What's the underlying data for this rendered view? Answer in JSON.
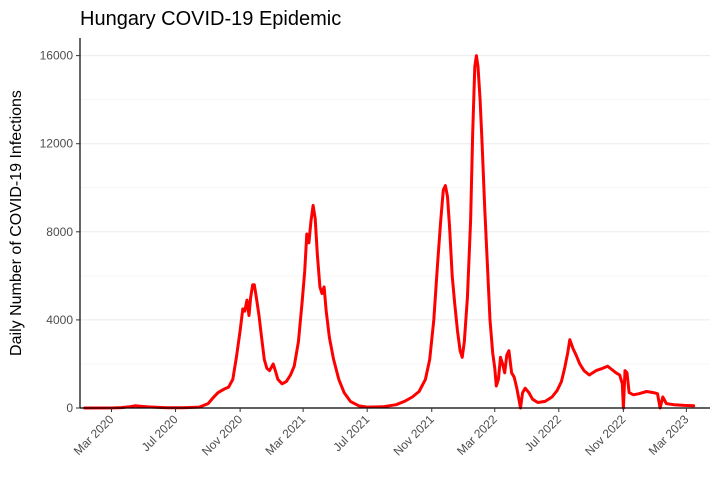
{
  "chart_data": {
    "type": "line",
    "title": "Hungary COVID-19 Epidemic",
    "xlabel": "",
    "ylabel": "Daily Number of COVID-19 Infections",
    "x_type": "date",
    "xlim": [
      "2020-01-01",
      "2023-04-15"
    ],
    "ylim": [
      0,
      16800
    ],
    "x_ticks": [
      {
        "date": "2020-03-01",
        "label": "Mar 2020"
      },
      {
        "date": "2020-07-01",
        "label": "Jul 2020"
      },
      {
        "date": "2020-11-01",
        "label": "Nov 2020"
      },
      {
        "date": "2021-03-01",
        "label": "Mar 2021"
      },
      {
        "date": "2021-07-01",
        "label": "Jul 2021"
      },
      {
        "date": "2021-11-01",
        "label": "Nov 2021"
      },
      {
        "date": "2022-03-01",
        "label": "Mar 2022"
      },
      {
        "date": "2022-07-01",
        "label": "Jul 2022"
      },
      {
        "date": "2022-11-01",
        "label": "Nov 2022"
      },
      {
        "date": "2023-03-01",
        "label": "Mar 2023"
      }
    ],
    "y_ticks": [
      0,
      4000,
      8000,
      12000,
      16000
    ],
    "y_tick_labels": [
      "0",
      "4000",
      "8000",
      "12000",
      "16000"
    ],
    "grid": true,
    "legend": "none",
    "series": [
      {
        "color": "#ff0000",
        "points": [
          [
            "2020-01-10",
            0
          ],
          [
            "2020-03-04",
            5
          ],
          [
            "2020-03-20",
            20
          ],
          [
            "2020-04-05",
            60
          ],
          [
            "2020-04-15",
            100
          ],
          [
            "2020-04-25",
            80
          ],
          [
            "2020-05-10",
            50
          ],
          [
            "2020-05-25",
            30
          ],
          [
            "2020-06-15",
            15
          ],
          [
            "2020-07-15",
            10
          ],
          [
            "2020-08-15",
            40
          ],
          [
            "2020-09-01",
            200
          ],
          [
            "2020-09-10",
            450
          ],
          [
            "2020-09-20",
            700
          ],
          [
            "2020-10-01",
            850
          ],
          [
            "2020-10-10",
            950
          ],
          [
            "2020-10-18",
            1300
          ],
          [
            "2020-10-25",
            2300
          ],
          [
            "2020-11-01",
            3500
          ],
          [
            "2020-11-06",
            4500
          ],
          [
            "2020-11-10",
            4400
          ],
          [
            "2020-11-14",
            4900
          ],
          [
            "2020-11-18",
            4200
          ],
          [
            "2020-11-21",
            5000
          ],
          [
            "2020-11-25",
            5600
          ],
          [
            "2020-11-28",
            5600
          ],
          [
            "2020-12-02",
            5000
          ],
          [
            "2020-12-07",
            4200
          ],
          [
            "2020-12-12",
            3200
          ],
          [
            "2020-12-17",
            2200
          ],
          [
            "2020-12-22",
            1800
          ],
          [
            "2020-12-27",
            1700
          ],
          [
            "2021-01-03",
            2000
          ],
          [
            "2021-01-07",
            1700
          ],
          [
            "2021-01-12",
            1300
          ],
          [
            "2021-01-20",
            1100
          ],
          [
            "2021-01-28",
            1200
          ],
          [
            "2021-02-05",
            1500
          ],
          [
            "2021-02-12",
            1900
          ],
          [
            "2021-02-20",
            3000
          ],
          [
            "2021-02-27",
            4800
          ],
          [
            "2021-03-04",
            6200
          ],
          [
            "2021-03-08",
            7900
          ],
          [
            "2021-03-12",
            7500
          ],
          [
            "2021-03-16",
            8500
          ],
          [
            "2021-03-20",
            9200
          ],
          [
            "2021-03-24",
            8600
          ],
          [
            "2021-03-28",
            7000
          ],
          [
            "2021-04-02",
            5500
          ],
          [
            "2021-04-06",
            5200
          ],
          [
            "2021-04-10",
            5500
          ],
          [
            "2021-04-14",
            4400
          ],
          [
            "2021-04-20",
            3200
          ],
          [
            "2021-04-28",
            2200
          ],
          [
            "2021-05-08",
            1300
          ],
          [
            "2021-05-18",
            700
          ],
          [
            "2021-05-30",
            300
          ],
          [
            "2021-06-15",
            100
          ],
          [
            "2021-07-01",
            40
          ],
          [
            "2021-08-01",
            60
          ],
          [
            "2021-08-25",
            150
          ],
          [
            "2021-09-10",
            300
          ],
          [
            "2021-09-25",
            500
          ],
          [
            "2021-10-08",
            750
          ],
          [
            "2021-10-20",
            1300
          ],
          [
            "2021-10-28",
            2200
          ],
          [
            "2021-11-05",
            4000
          ],
          [
            "2021-11-12",
            6500
          ],
          [
            "2021-11-18",
            8500
          ],
          [
            "2021-11-23",
            9900
          ],
          [
            "2021-11-27",
            10100
          ],
          [
            "2021-12-01",
            9600
          ],
          [
            "2021-12-05",
            8200
          ],
          [
            "2021-12-10",
            6000
          ],
          [
            "2021-12-15",
            4700
          ],
          [
            "2021-12-20",
            3500
          ],
          [
            "2021-12-25",
            2600
          ],
          [
            "2021-12-29",
            2300
          ],
          [
            "2022-01-02",
            3000
          ],
          [
            "2022-01-08",
            5000
          ],
          [
            "2022-01-14",
            8500
          ],
          [
            "2022-01-18",
            12500
          ],
          [
            "2022-01-22",
            15500
          ],
          [
            "2022-01-25",
            16000
          ],
          [
            "2022-01-28",
            15500
          ],
          [
            "2022-02-01",
            14000
          ],
          [
            "2022-02-05",
            12000
          ],
          [
            "2022-02-10",
            9000
          ],
          [
            "2022-02-15",
            6500
          ],
          [
            "2022-02-20",
            4000
          ],
          [
            "2022-02-25",
            2500
          ],
          [
            "2022-03-01",
            1800
          ],
          [
            "2022-03-04",
            1000
          ],
          [
            "2022-03-08",
            1300
          ],
          [
            "2022-03-12",
            2300
          ],
          [
            "2022-03-16",
            2000
          ],
          [
            "2022-03-20",
            1600
          ],
          [
            "2022-03-24",
            2400
          ],
          [
            "2022-03-28",
            2600
          ],
          [
            "2022-04-02",
            1600
          ],
          [
            "2022-04-07",
            1400
          ],
          [
            "2022-04-12",
            900
          ],
          [
            "2022-04-16",
            400
          ],
          [
            "2022-04-19",
            0
          ],
          [
            "2022-04-23",
            700
          ],
          [
            "2022-04-28",
            900
          ],
          [
            "2022-05-05",
            700
          ],
          [
            "2022-05-12",
            400
          ],
          [
            "2022-05-22",
            250
          ],
          [
            "2022-06-05",
            300
          ],
          [
            "2022-06-18",
            500
          ],
          [
            "2022-06-28",
            800
          ],
          [
            "2022-07-06",
            1200
          ],
          [
            "2022-07-12",
            1800
          ],
          [
            "2022-07-18",
            2500
          ],
          [
            "2022-07-22",
            3100
          ],
          [
            "2022-07-28",
            2700
          ],
          [
            "2022-08-03",
            2400
          ],
          [
            "2022-08-10",
            2000
          ],
          [
            "2022-08-18",
            1700
          ],
          [
            "2022-08-28",
            1500
          ],
          [
            "2022-09-10",
            1700
          ],
          [
            "2022-09-22",
            1800
          ],
          [
            "2022-10-02",
            1900
          ],
          [
            "2022-10-10",
            1750
          ],
          [
            "2022-10-18",
            1600
          ],
          [
            "2022-10-25",
            1500
          ],
          [
            "2022-10-30",
            1100
          ],
          [
            "2022-11-01",
            0
          ],
          [
            "2022-11-04",
            1700
          ],
          [
            "2022-11-08",
            1600
          ],
          [
            "2022-11-12",
            700
          ],
          [
            "2022-11-20",
            600
          ],
          [
            "2022-12-01",
            650
          ],
          [
            "2022-12-15",
            750
          ],
          [
            "2022-12-28",
            700
          ],
          [
            "2023-01-05",
            650
          ],
          [
            "2023-01-10",
            0
          ],
          [
            "2023-01-15",
            500
          ],
          [
            "2023-01-22",
            200
          ],
          [
            "2023-02-05",
            150
          ],
          [
            "2023-02-25",
            120
          ],
          [
            "2023-03-15",
            100
          ]
        ]
      }
    ]
  }
}
